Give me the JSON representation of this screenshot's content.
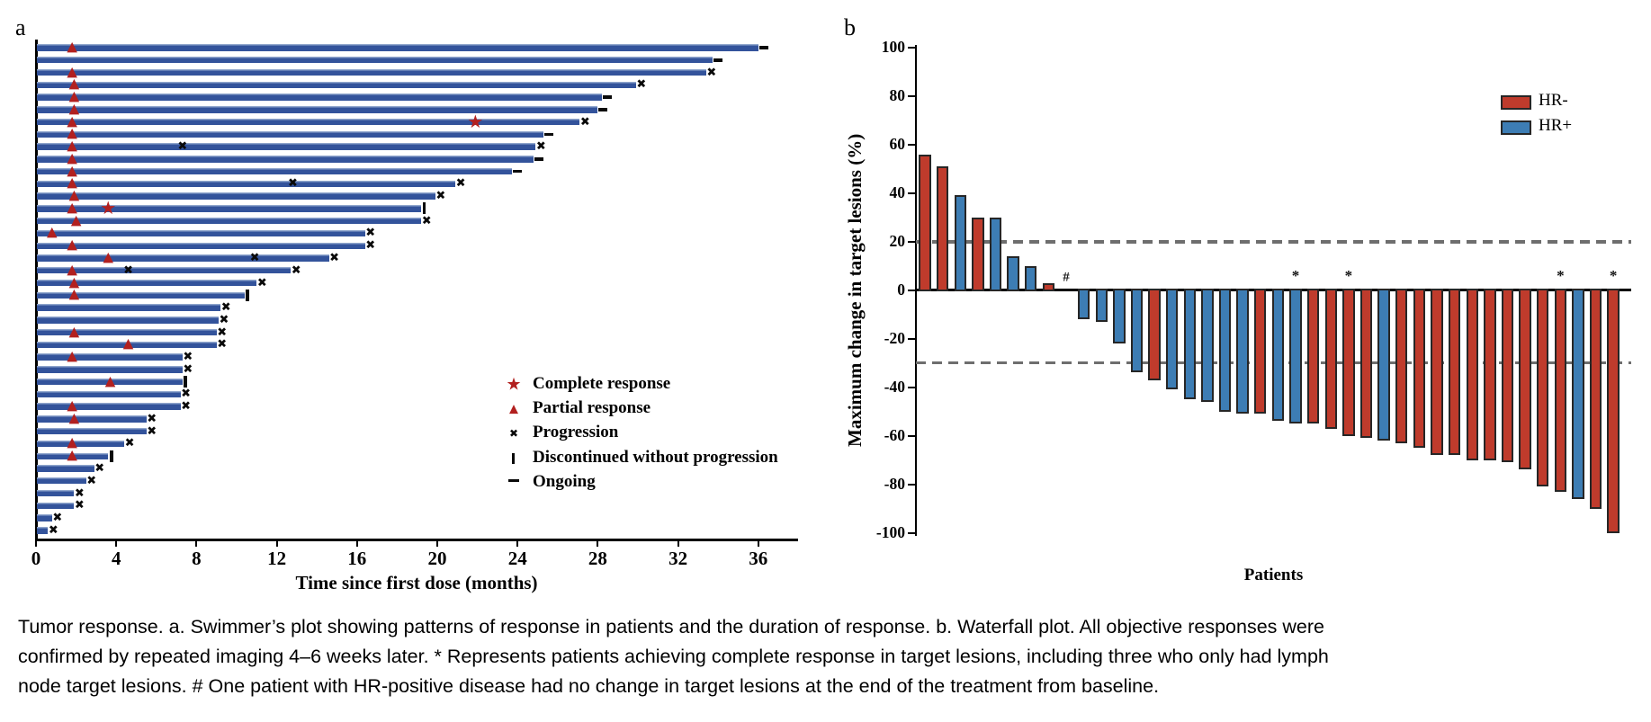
{
  "figure": {
    "panel_a_label": "a",
    "panel_b_label": "b"
  },
  "caption": {
    "lines": [
      "Tumor response. a. Swimmer’s plot showing patterns of response in patients and the duration of response. b. Waterfall plot. All objective responses were",
      "confirmed by repeated imaging 4–6 weeks later. * Represents patients achieving complete response in target lesions, including three who only had lymph",
      "node target lesions. # One patient with HR-positive disease had no change in target lesions at the end of the treatment from baseline."
    ]
  },
  "chart_data": [
    {
      "type": "bar",
      "variant": "swimmer",
      "xlabel": "Time since first dose (months)",
      "xlim": [
        0,
        38
      ],
      "x_ticks": [
        0,
        4,
        8,
        12,
        16,
        20,
        24,
        28,
        32,
        36
      ],
      "bar_color": "#33539B",
      "response_marker_color": "#B2201F",
      "event_marker_color": "#0A0A0A",
      "legend": [
        {
          "symbol": "star",
          "label": "Complete response"
        },
        {
          "symbol": "triangle",
          "label": "Partial response"
        },
        {
          "symbol": "x",
          "label": "Progression"
        },
        {
          "symbol": "bar",
          "label": "Discontinued without progression"
        },
        {
          "symbol": "dash",
          "label": "Ongoing"
        }
      ],
      "patients": [
        {
          "duration": 36.0,
          "end": "ongoing",
          "marks": [
            {
              "type": "pr",
              "t": 1.8
            }
          ]
        },
        {
          "duration": 33.7,
          "end": "ongoing",
          "marks": []
        },
        {
          "duration": 33.4,
          "end": "progression",
          "marks": [
            {
              "type": "pr",
              "t": 1.8
            }
          ]
        },
        {
          "duration": 29.9,
          "end": "progression",
          "marks": [
            {
              "type": "pr",
              "t": 1.9
            }
          ]
        },
        {
          "duration": 28.2,
          "end": "ongoing",
          "marks": [
            {
              "type": "pr",
              "t": 1.9
            }
          ]
        },
        {
          "duration": 28.0,
          "end": "ongoing",
          "marks": [
            {
              "type": "pr",
              "t": 1.9
            }
          ]
        },
        {
          "duration": 27.1,
          "end": "progression",
          "marks": [
            {
              "type": "pr",
              "t": 1.8
            },
            {
              "type": "cr",
              "t": 21.9
            }
          ]
        },
        {
          "duration": 25.3,
          "end": "ongoing",
          "marks": [
            {
              "type": "pr",
              "t": 1.8
            }
          ]
        },
        {
          "duration": 24.9,
          "end": "progression",
          "marks": [
            {
              "type": "pr",
              "t": 1.8
            },
            {
              "type": "x",
              "t": 7.3
            }
          ]
        },
        {
          "duration": 24.8,
          "end": "ongoing",
          "marks": [
            {
              "type": "pr",
              "t": 1.8
            }
          ]
        },
        {
          "duration": 23.7,
          "end": "ongoing",
          "marks": [
            {
              "type": "pr",
              "t": 1.8
            }
          ]
        },
        {
          "duration": 20.9,
          "end": "progression",
          "marks": [
            {
              "type": "pr",
              "t": 1.8
            },
            {
              "type": "x",
              "t": 12.8
            }
          ]
        },
        {
          "duration": 19.9,
          "end": "progression",
          "marks": [
            {
              "type": "pr",
              "t": 1.9
            }
          ]
        },
        {
          "duration": 19.2,
          "end": "discontinued",
          "marks": [
            {
              "type": "pr",
              "t": 1.8
            },
            {
              "type": "cr",
              "t": 3.6
            }
          ]
        },
        {
          "duration": 19.2,
          "end": "progression",
          "marks": [
            {
              "type": "pr",
              "t": 2.0
            }
          ]
        },
        {
          "duration": 16.4,
          "end": "progression",
          "marks": [
            {
              "type": "pr",
              "t": 0.8
            }
          ]
        },
        {
          "duration": 16.4,
          "end": "progression",
          "marks": [
            {
              "type": "pr",
              "t": 1.8
            }
          ]
        },
        {
          "duration": 14.6,
          "end": "progression",
          "marks": [
            {
              "type": "pr",
              "t": 3.6
            },
            {
              "type": "x",
              "t": 10.9
            }
          ]
        },
        {
          "duration": 12.7,
          "end": "progression",
          "marks": [
            {
              "type": "pr",
              "t": 1.8
            },
            {
              "type": "x",
              "t": 4.6
            }
          ]
        },
        {
          "duration": 11.0,
          "end": "progression",
          "marks": [
            {
              "type": "pr",
              "t": 1.9
            }
          ]
        },
        {
          "duration": 10.4,
          "end": "discontinued",
          "marks": [
            {
              "type": "pr",
              "t": 1.9
            }
          ]
        },
        {
          "duration": 9.2,
          "end": "progression",
          "marks": []
        },
        {
          "duration": 9.1,
          "end": "progression",
          "marks": []
        },
        {
          "duration": 9.0,
          "end": "progression",
          "marks": [
            {
              "type": "pr",
              "t": 1.9
            }
          ]
        },
        {
          "duration": 9.0,
          "end": "progression",
          "marks": [
            {
              "type": "pr",
              "t": 4.6
            }
          ]
        },
        {
          "duration": 7.3,
          "end": "progression",
          "marks": [
            {
              "type": "pr",
              "t": 1.8
            }
          ]
        },
        {
          "duration": 7.3,
          "end": "progression",
          "marks": []
        },
        {
          "duration": 7.3,
          "end": "discontinued",
          "marks": [
            {
              "type": "pr",
              "t": 3.7
            }
          ]
        },
        {
          "duration": 7.2,
          "end": "progression",
          "marks": []
        },
        {
          "duration": 7.2,
          "end": "progression",
          "marks": [
            {
              "type": "pr",
              "t": 1.8
            }
          ]
        },
        {
          "duration": 5.5,
          "end": "progression",
          "marks": [
            {
              "type": "pr",
              "t": 1.9
            }
          ]
        },
        {
          "duration": 5.5,
          "end": "progression",
          "marks": []
        },
        {
          "duration": 4.4,
          "end": "progression",
          "marks": [
            {
              "type": "pr",
              "t": 1.8
            }
          ]
        },
        {
          "duration": 3.6,
          "end": "discontinued",
          "marks": [
            {
              "type": "pr",
              "t": 1.8
            }
          ]
        },
        {
          "duration": 2.9,
          "end": "progression",
          "marks": []
        },
        {
          "duration": 2.5,
          "end": "progression",
          "marks": []
        },
        {
          "duration": 1.9,
          "end": "progression",
          "marks": []
        },
        {
          "duration": 1.9,
          "end": "progression",
          "marks": []
        },
        {
          "duration": 0.8,
          "end": "progression",
          "marks": []
        },
        {
          "duration": 0.6,
          "end": "progression",
          "marks": []
        }
      ]
    },
    {
      "type": "bar",
      "variant": "waterfall",
      "ylabel": "Maximum change in target lesions (%)",
      "xlabel": "Patients",
      "ylim": [
        -100,
        100
      ],
      "y_ticks": [
        100,
        80,
        60,
        40,
        20,
        0,
        -20,
        -40,
        -60,
        -80,
        -100
      ],
      "ref_lines": [
        20,
        -30
      ],
      "ref_line_color": "#6E6E6E",
      "legend": [
        {
          "label": "HR-",
          "color": "#BF3B2C"
        },
        {
          "label": "HR+",
          "color": "#3D7DB4"
        }
      ],
      "patients": [
        {
          "value": 56,
          "group": "HR-"
        },
        {
          "value": 51,
          "group": "HR-"
        },
        {
          "value": 39,
          "group": "HR+"
        },
        {
          "value": 30,
          "group": "HR-"
        },
        {
          "value": 30,
          "group": "HR+"
        },
        {
          "value": 14,
          "group": "HR+"
        },
        {
          "value": 10,
          "group": "HR+"
        },
        {
          "value": 3,
          "group": "HR-"
        },
        {
          "value": 0,
          "group": "HR+",
          "annotation": "#"
        },
        {
          "value": -12,
          "group": "HR+"
        },
        {
          "value": -13,
          "group": "HR+"
        },
        {
          "value": -22,
          "group": "HR+"
        },
        {
          "value": -34,
          "group": "HR+"
        },
        {
          "value": -37,
          "group": "HR-"
        },
        {
          "value": -41,
          "group": "HR+"
        },
        {
          "value": -45,
          "group": "HR+"
        },
        {
          "value": -46,
          "group": "HR+"
        },
        {
          "value": -50,
          "group": "HR+"
        },
        {
          "value": -51,
          "group": "HR+"
        },
        {
          "value": -51,
          "group": "HR-"
        },
        {
          "value": -54,
          "group": "HR+"
        },
        {
          "value": -55,
          "group": "HR+",
          "annotation": "*"
        },
        {
          "value": -55,
          "group": "HR-"
        },
        {
          "value": -57,
          "group": "HR-"
        },
        {
          "value": -60,
          "group": "HR-",
          "annotation": "*"
        },
        {
          "value": -61,
          "group": "HR-"
        },
        {
          "value": -62,
          "group": "HR+"
        },
        {
          "value": -63,
          "group": "HR-"
        },
        {
          "value": -65,
          "group": "HR-"
        },
        {
          "value": -68,
          "group": "HR-"
        },
        {
          "value": -68,
          "group": "HR-"
        },
        {
          "value": -70,
          "group": "HR-"
        },
        {
          "value": -70,
          "group": "HR-"
        },
        {
          "value": -71,
          "group": "HR-"
        },
        {
          "value": -74,
          "group": "HR-"
        },
        {
          "value": -81,
          "group": "HR-"
        },
        {
          "value": -83,
          "group": "HR-",
          "annotation": "*"
        },
        {
          "value": -86,
          "group": "HR+"
        },
        {
          "value": -90,
          "group": "HR-"
        },
        {
          "value": -100,
          "group": "HR-",
          "annotation": "*"
        }
      ]
    }
  ]
}
